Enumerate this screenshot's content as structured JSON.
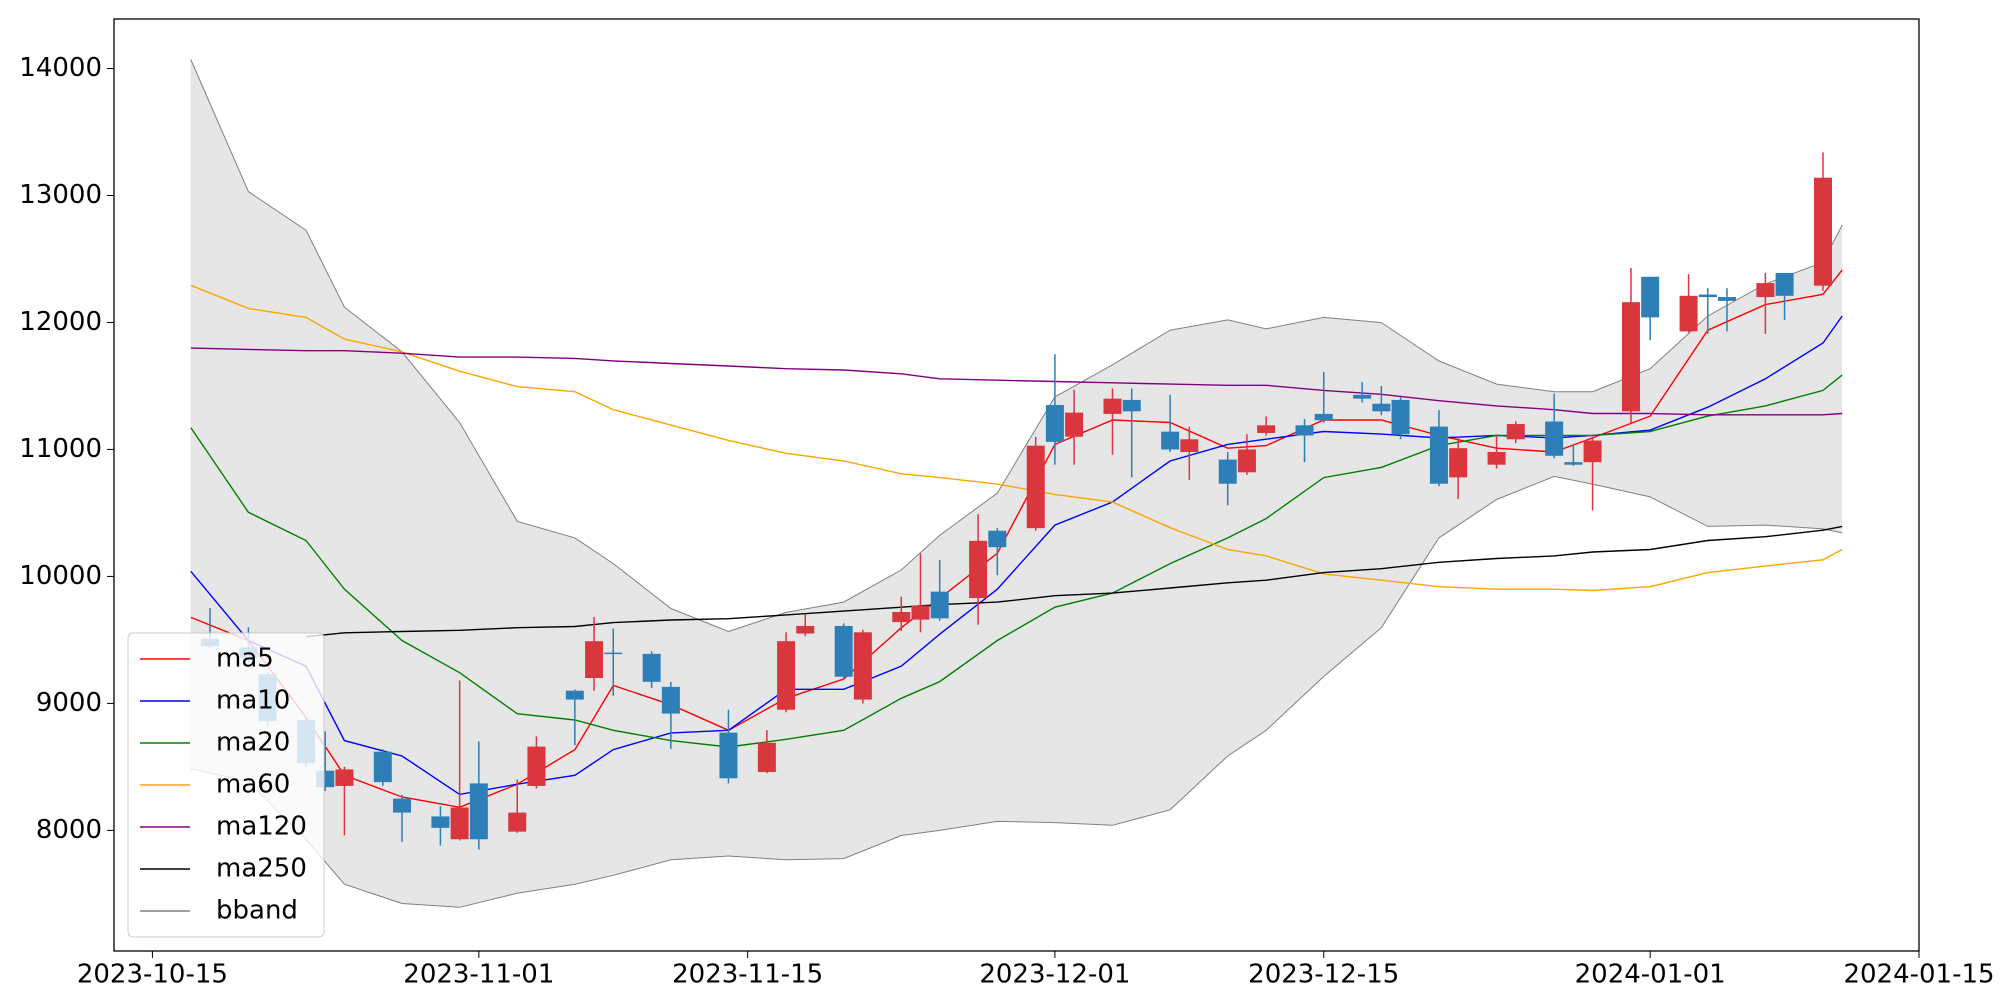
{
  "chart_data": {
    "type": "candlestick",
    "xlim": [
      "2023-10-13",
      "2024-01-15"
    ],
    "xticks": [
      "2023-10-15",
      "2023-11-01",
      "2023-11-15",
      "2023-12-01",
      "2023-12-15",
      "2024-01-01",
      "2024-01-15"
    ],
    "ylim": [
      7050,
      14390
    ],
    "yticks": [
      8000,
      9000,
      10000,
      11000,
      12000,
      13000,
      14000
    ],
    "legend": "lower left",
    "candles": {
      "up_color": "#d9363e",
      "down_color": "#2e7eb8",
      "x": [
        "2023-10-18",
        "2023-10-20",
        "2023-10-21",
        "2023-10-23",
        "2023-10-24",
        "2023-10-25",
        "2023-10-27",
        "2023-10-28",
        "2023-10-30",
        "2023-10-31",
        "2023-11-01",
        "2023-11-03",
        "2023-11-04",
        "2023-11-06",
        "2023-11-07",
        "2023-11-08",
        "2023-11-10",
        "2023-11-11",
        "2023-11-14",
        "2023-11-16",
        "2023-11-17",
        "2023-11-18",
        "2023-11-20",
        "2023-11-21",
        "2023-11-23",
        "2023-11-24",
        "2023-11-25",
        "2023-11-27",
        "2023-11-28",
        "2023-11-30",
        "2023-12-01",
        "2023-12-02",
        "2023-12-04",
        "2023-12-05",
        "2023-12-07",
        "2023-12-08",
        "2023-12-10",
        "2023-12-11",
        "2023-12-12",
        "2023-12-14",
        "2023-12-15",
        "2023-12-17",
        "2023-12-18",
        "2023-12-19",
        "2023-12-21",
        "2023-12-22",
        "2023-12-24",
        "2023-12-25",
        "2023-12-27",
        "2023-12-28",
        "2023-12-29",
        "2023-12-31",
        "2024-01-01",
        "2024-01-03",
        "2024-01-04",
        "2024-01-05",
        "2024-01-07",
        "2024-01-08",
        "2024-01-10"
      ],
      "open": [
        9510,
        9440,
        9230,
        8870,
        8470,
        8350,
        8620,
        8250,
        8110,
        7930,
        8370,
        7990,
        8350,
        9100,
        9200,
        9400,
        9390,
        9130,
        8770,
        8460,
        8950,
        9550,
        9610,
        9030,
        9640,
        9660,
        9880,
        9830,
        10360,
        10380,
        11350,
        11100,
        11280,
        11390,
        11140,
        10980,
        10920,
        10820,
        11130,
        11190,
        11280,
        11430,
        11360,
        11390,
        11180,
        10780,
        10880,
        11080,
        11220,
        10900,
        10900,
        11300,
        12360,
        11930,
        12220,
        12200,
        12200,
        12390,
        12290
      ],
      "close": [
        9450,
        9360,
        8860,
        8530,
        8340,
        8480,
        8380,
        8140,
        8020,
        8180,
        7930,
        8140,
        8660,
        9030,
        9490,
        9390,
        9170,
        8920,
        8410,
        8690,
        9490,
        9610,
        9210,
        9560,
        9720,
        9770,
        9670,
        10280,
        10230,
        11030,
        11060,
        11290,
        11400,
        11300,
        11000,
        11080,
        10730,
        11000,
        11190,
        11110,
        11230,
        11400,
        11300,
        11120,
        10730,
        11010,
        10980,
        11200,
        10950,
        10880,
        11070,
        12160,
        12040,
        12210,
        12200,
        12170,
        12310,
        12210,
        13140
      ],
      "high": [
        9750,
        9600,
        9250,
        8900,
        8780,
        8500,
        8640,
        8280,
        8190,
        9180,
        8700,
        8400,
        8740,
        9110,
        9680,
        9590,
        9410,
        9170,
        8950,
        8790,
        9560,
        9700,
        9630,
        9580,
        9840,
        10180,
        10130,
        10490,
        10380,
        11100,
        11750,
        11470,
        11480,
        11480,
        11430,
        11180,
        10980,
        11120,
        11260,
        11240,
        11610,
        11530,
        11500,
        11410,
        11310,
        11100,
        11110,
        11220,
        11440,
        11040,
        11100,
        12430,
        12360,
        12380,
        12270,
        12270,
        12390,
        12390,
        13340
      ],
      "low": [
        9430,
        9330,
        8820,
        8500,
        8310,
        7960,
        8350,
        7910,
        7880,
        7920,
        7850,
        7980,
        8330,
        8670,
        9100,
        9060,
        9120,
        8640,
        8370,
        8450,
        8930,
        9530,
        9200,
        9000,
        9570,
        9560,
        9650,
        9620,
        10010,
        10360,
        10880,
        10880,
        10960,
        10780,
        10980,
        10760,
        10560,
        10800,
        11110,
        10900,
        11210,
        11370,
        11270,
        11080,
        10710,
        10610,
        10850,
        11050,
        10930,
        10870,
        10520,
        11200,
        11860,
        11920,
        11910,
        11930,
        11910,
        12020,
        12250
      ]
    },
    "x": [
      "2023-10-17",
      "2023-10-20",
      "2023-10-23",
      "2023-10-25",
      "2023-10-28",
      "2023-10-31",
      "2023-11-03",
      "2023-11-06",
      "2023-11-08",
      "2023-11-11",
      "2023-11-14",
      "2023-11-17",
      "2023-11-20",
      "2023-11-23",
      "2023-11-25",
      "2023-11-28",
      "2023-12-01",
      "2023-12-04",
      "2023-12-07",
      "2023-12-10",
      "2023-12-12",
      "2023-12-15",
      "2023-12-18",
      "2023-12-21",
      "2023-12-24",
      "2023-12-27",
      "2023-12-29",
      "2024-01-01",
      "2024-01-04",
      "2024-01-07",
      "2024-01-10",
      "2024-01-11"
    ],
    "series": [
      {
        "name": "ma5",
        "color": "#ff0000",
        "values": [
          9677,
          9495,
          8890,
          8434,
          8263,
          8182,
          8364,
          8636,
          9141,
          8990,
          8788,
          9040,
          9192,
          9596,
          9828,
          10182,
          11040,
          11232,
          11212,
          11010,
          11030,
          11232,
          11232,
          11111,
          11010,
          10980,
          11091,
          11263,
          11939,
          12141,
          12222,
          12414
        ]
      },
      {
        "name": "ma10",
        "color": "#0000ff",
        "values": [
          10040,
          9495,
          9293,
          8707,
          8586,
          8283,
          8364,
          8434,
          8636,
          8768,
          8788,
          9111,
          9111,
          9293,
          9545,
          9899,
          10404,
          10586,
          10909,
          11040,
          11081,
          11141,
          11121,
          11091,
          11111,
          11091,
          11111,
          11152,
          11333,
          11556,
          11838,
          12051
        ]
      },
      {
        "name": "ma20",
        "color": "#008000",
        "values": [
          11172,
          10505,
          10283,
          9899,
          9495,
          9242,
          8919,
          8869,
          8788,
          8707,
          8657,
          8717,
          8788,
          9040,
          9172,
          9495,
          9758,
          9869,
          10101,
          10303,
          10455,
          10778,
          10859,
          11030,
          11111,
          11111,
          11111,
          11141,
          11263,
          11343,
          11465,
          11586
        ]
      },
      {
        "name": "ma60",
        "color": "#ffa500",
        "values": [
          12293,
          12111,
          12040,
          11869,
          11768,
          11616,
          11495,
          11455,
          11313,
          11192,
          11071,
          10970,
          10909,
          10808,
          10778,
          10727,
          10646,
          10586,
          10384,
          10212,
          10162,
          10020,
          9970,
          9919,
          9899,
          9899,
          9889,
          9919,
          10030,
          10081,
          10131,
          10212
        ]
      },
      {
        "name": "ma120",
        "color": "#800080",
        "values": [
          11798,
          11788,
          11778,
          11778,
          11758,
          11727,
          11727,
          11717,
          11697,
          11677,
          11657,
          11636,
          11626,
          11596,
          11556,
          11545,
          11535,
          11525,
          11515,
          11505,
          11505,
          11465,
          11434,
          11384,
          11343,
          11313,
          11283,
          11283,
          11273,
          11273,
          11273,
          11283
        ]
      },
      {
        "name": "ma250",
        "color": "#000000",
        "values": [
          null,
          null,
          9525,
          9556,
          9566,
          9576,
          9596,
          9606,
          9636,
          9657,
          9667,
          9697,
          9727,
          9758,
          9778,
          9798,
          9848,
          9869,
          9909,
          9950,
          9970,
          10030,
          10061,
          10111,
          10141,
          10162,
          10192,
          10212,
          10283,
          10313,
          10364,
          10394
        ]
      }
    ],
    "bband": {
      "name": "bband",
      "color": "#808080",
      "upper": [
        14071,
        13030,
        12727,
        12121,
        11768,
        11212,
        10434,
        10303,
        10101,
        9747,
        9566,
        9717,
        9798,
        10051,
        10323,
        10656,
        11414,
        11667,
        11939,
        12020,
        11949,
        12040,
        11999,
        11697,
        11515,
        11455,
        11455,
        11636,
        12051,
        12303,
        12475,
        12768
      ],
      "lower": [
        8485,
        8384,
        7929,
        7576,
        7424,
        7394,
        7505,
        7576,
        7646,
        7768,
        7798,
        7768,
        7778,
        7960,
        8000,
        8071,
        8061,
        8040,
        8162,
        8586,
        8788,
        9212,
        9596,
        10303,
        10606,
        10788,
        10727,
        10626,
        10394,
        10404,
        10374,
        10343
      ]
    }
  }
}
